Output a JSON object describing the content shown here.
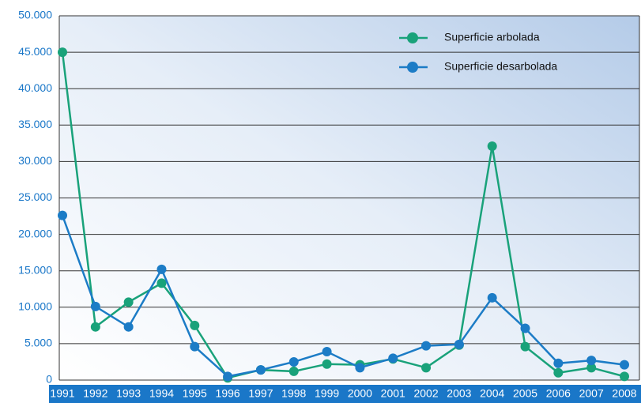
{
  "chart_data": {
    "type": "line",
    "categories": [
      "1991",
      "1992",
      "1993",
      "1994",
      "1995",
      "1996",
      "1997",
      "1998",
      "1999",
      "2000",
      "2001",
      "2002",
      "2003",
      "2004",
      "2005",
      "2006",
      "2007",
      "2008"
    ],
    "series": [
      {
        "name": "Superficie arbolada",
        "color": "#19a27a",
        "values": [
          45000,
          7300,
          10700,
          13300,
          7500,
          300,
          1400,
          1200,
          2200,
          2100,
          2900,
          1700,
          4800,
          32100,
          4600,
          1000,
          1700,
          500
        ]
      },
      {
        "name": "Superficie desarbolada",
        "color": "#1c7cc6",
        "values": [
          22600,
          10100,
          7300,
          15200,
          4600,
          500,
          1400,
          2500,
          3900,
          1700,
          3000,
          4700,
          4900,
          11300,
          7100,
          2300,
          2700,
          2100
        ]
      }
    ],
    "ylim": [
      0,
      50000
    ],
    "yticks": [
      0,
      {
        "value": 5000,
        "label": "5.000"
      },
      {
        "value": 10000,
        "label": "10.000"
      },
      {
        "value": 15000,
        "label": "15.000"
      },
      {
        "value": 20000,
        "label": "20.000"
      },
      {
        "value": 25000,
        "label": "25.000"
      },
      {
        "value": 30000,
        "label": "30.000"
      },
      {
        "value": 35000,
        "label": "35.000"
      },
      {
        "value": 40000,
        "label": "40.000"
      },
      {
        "value": 45000,
        "label": "45.000"
      },
      {
        "value": 50000,
        "label": "50.000"
      }
    ],
    "grid": true,
    "legend": "upper right"
  }
}
